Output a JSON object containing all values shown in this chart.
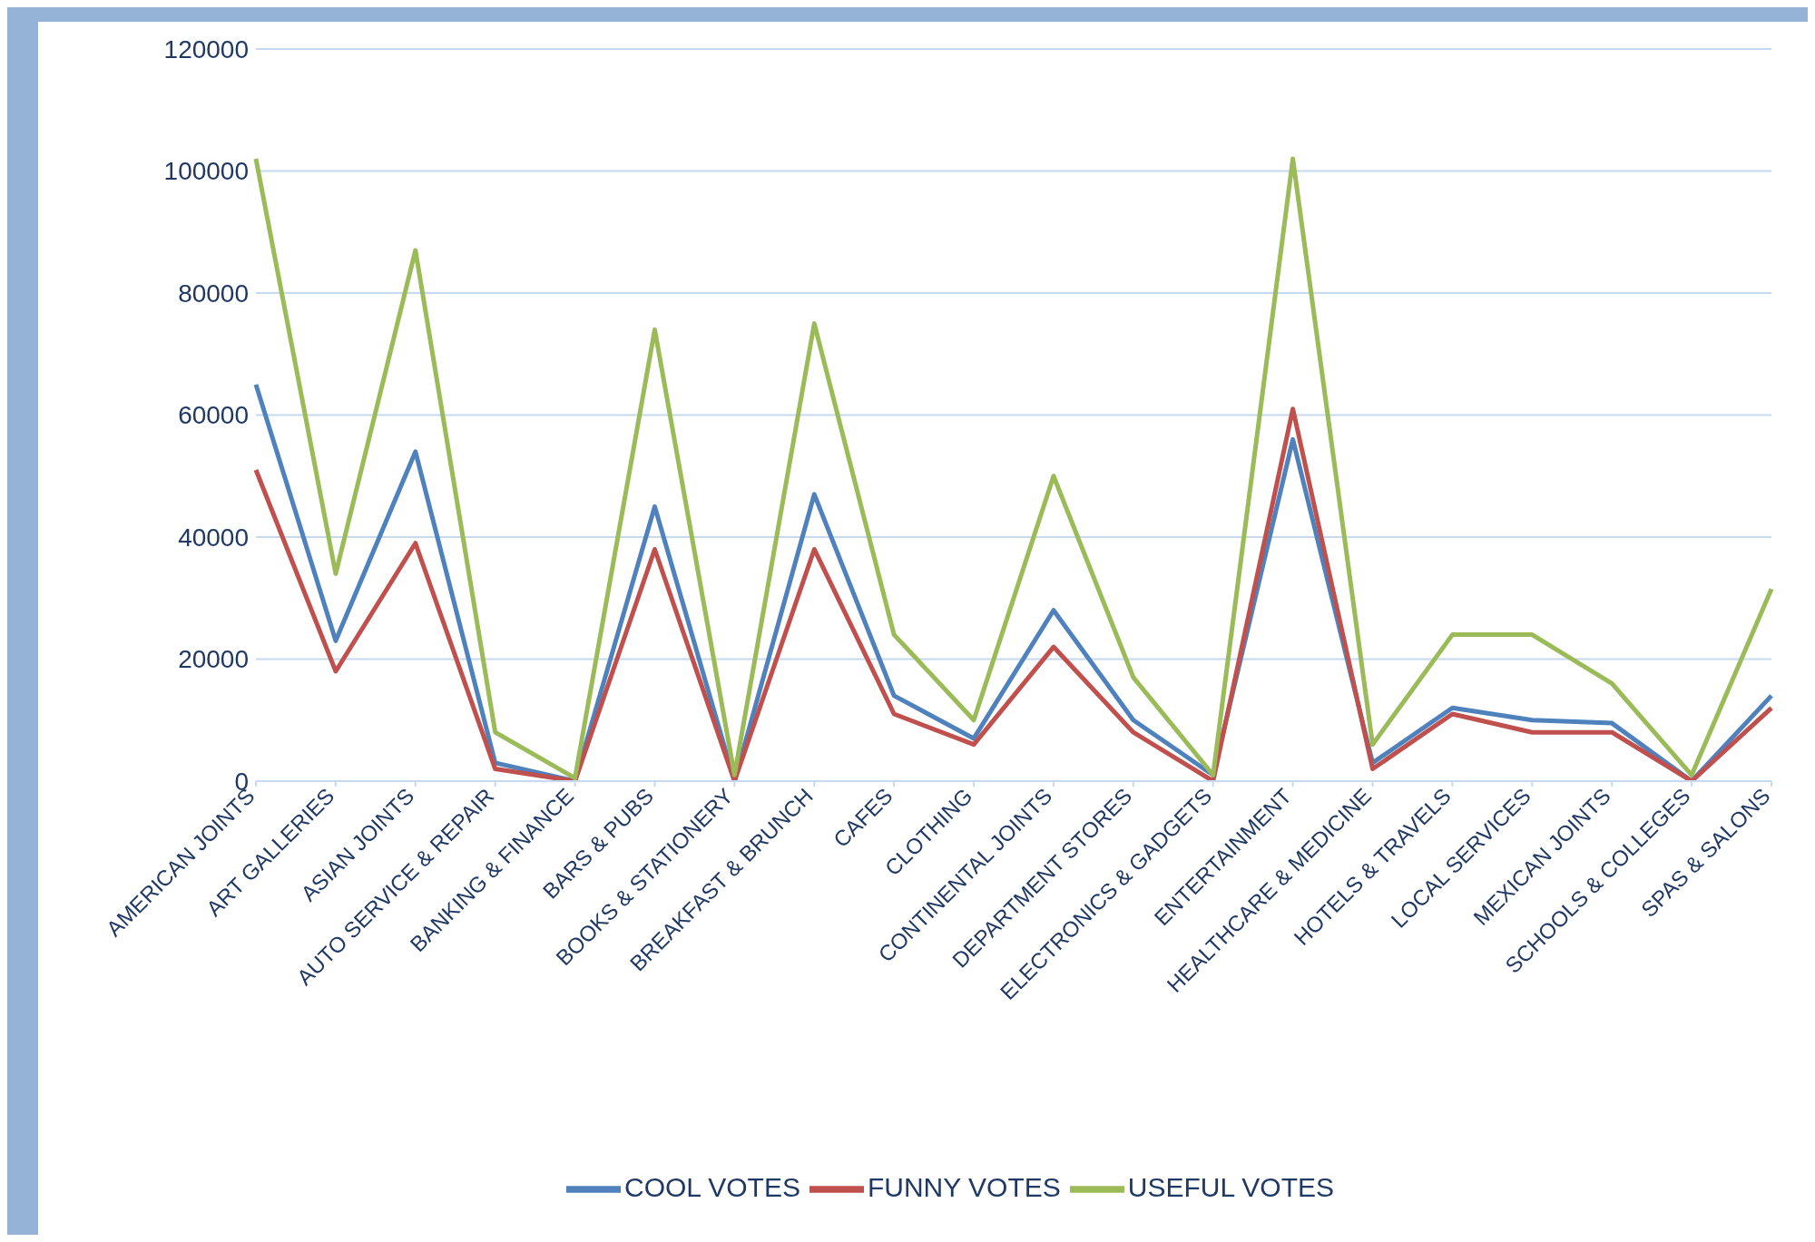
{
  "chart_data": {
    "type": "line",
    "categories": [
      "AMERICAN JOINTS",
      "ART GALLERIES",
      "ASIAN JOINTS",
      "AUTO SERVICE & REPAIR",
      "BANKING & FINANCE",
      "BARS & PUBS",
      "BOOKS & STATIONERY",
      "BREAKFAST & BRUNCH",
      "CAFES",
      "CLOTHING",
      "CONTINENTAL JOINTS",
      "DEPARTMENT STORES",
      "ELECTRONICS & GADGETS",
      "ENTERTAINMENT",
      "HEALTHCARE & MEDICINE",
      "HOTELS & TRAVELS",
      "LOCAL SERVICES",
      "MEXICAN JOINTS",
      "SCHOOLS & COLLEGES",
      "SPAS & SALONS"
    ],
    "series": [
      {
        "name": "COOL VOTES",
        "color": "#4f81bd",
        "values": [
          65000,
          23000,
          54000,
          3000,
          0,
          45000,
          0,
          47000,
          14000,
          7000,
          28000,
          10000,
          1000,
          56000,
          3000,
          12000,
          10000,
          9500,
          0,
          14000
        ]
      },
      {
        "name": "FUNNY VOTES",
        "color": "#c0504d",
        "values": [
          51000,
          18000,
          39000,
          2000,
          0,
          38000,
          0,
          38000,
          11000,
          6000,
          22000,
          8000,
          0,
          61000,
          2000,
          11000,
          8000,
          8000,
          0,
          12000
        ]
      },
      {
        "name": "USEFUL VOTES",
        "color": "#9bbb59",
        "values": [
          102000,
          34000,
          87000,
          8000,
          500,
          74000,
          1000,
          75000,
          24000,
          10000,
          50000,
          17000,
          1000,
          102000,
          6000,
          24000,
          24000,
          16000,
          1000,
          31500
        ]
      }
    ],
    "ylim": [
      0,
      120000
    ],
    "yticks": [
      0,
      20000,
      40000,
      60000,
      80000,
      100000,
      120000
    ],
    "grid": "y",
    "legend": "bottom",
    "marker": "none",
    "line_style": "solid"
  }
}
